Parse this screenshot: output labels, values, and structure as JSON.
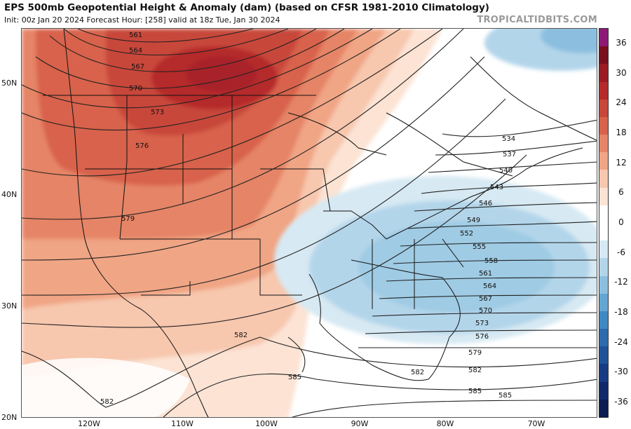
{
  "header": {
    "title": "EPS 500mb Geopotential Height & Anomaly (dam) (based on CFSR 1981-2010 Climatology)",
    "subtitle": "Init: 00z Jan 20 2024   Forecast Hour: [258]   valid at 18z Tue, Jan 30 2024",
    "brand": "TROPICALTIDBITS.COM"
  },
  "axes": {
    "lat_labels": [
      "50N",
      "40N",
      "30N",
      "20N"
    ],
    "lon_labels": [
      "120W",
      "110W",
      "100W",
      "90W",
      "80W",
      "70W"
    ]
  },
  "contours": {
    "west": [
      "561",
      "564",
      "567",
      "570",
      "573",
      "576",
      "579",
      "582",
      "582",
      "582",
      "585",
      "585"
    ],
    "east": [
      "534",
      "537",
      "540",
      "543",
      "546",
      "549",
      "552",
      "555",
      "558",
      "561",
      "564",
      "567",
      "570",
      "573",
      "576",
      "579",
      "582",
      "585"
    ]
  },
  "colorbar": {
    "labels": [
      "36",
      "30",
      "24",
      "18",
      "12",
      "6",
      "0",
      "-6",
      "-12",
      "-18",
      "-24",
      "-30",
      "-36"
    ],
    "colors": [
      "#8e1a78",
      "#7a0f1e",
      "#9c1b22",
      "#b52a2a",
      "#c8463a",
      "#d8624c",
      "#e58466",
      "#f0a585",
      "#f7c7ae",
      "#fce3d4",
      "#ffffff",
      "#ffffff",
      "#d7e9f3",
      "#b3d5ea",
      "#8cbfdf",
      "#64a6d2",
      "#3f89c2",
      "#2c6cae",
      "#20529a",
      "#173c84",
      "#10296b",
      "#0b1c52"
    ]
  }
}
